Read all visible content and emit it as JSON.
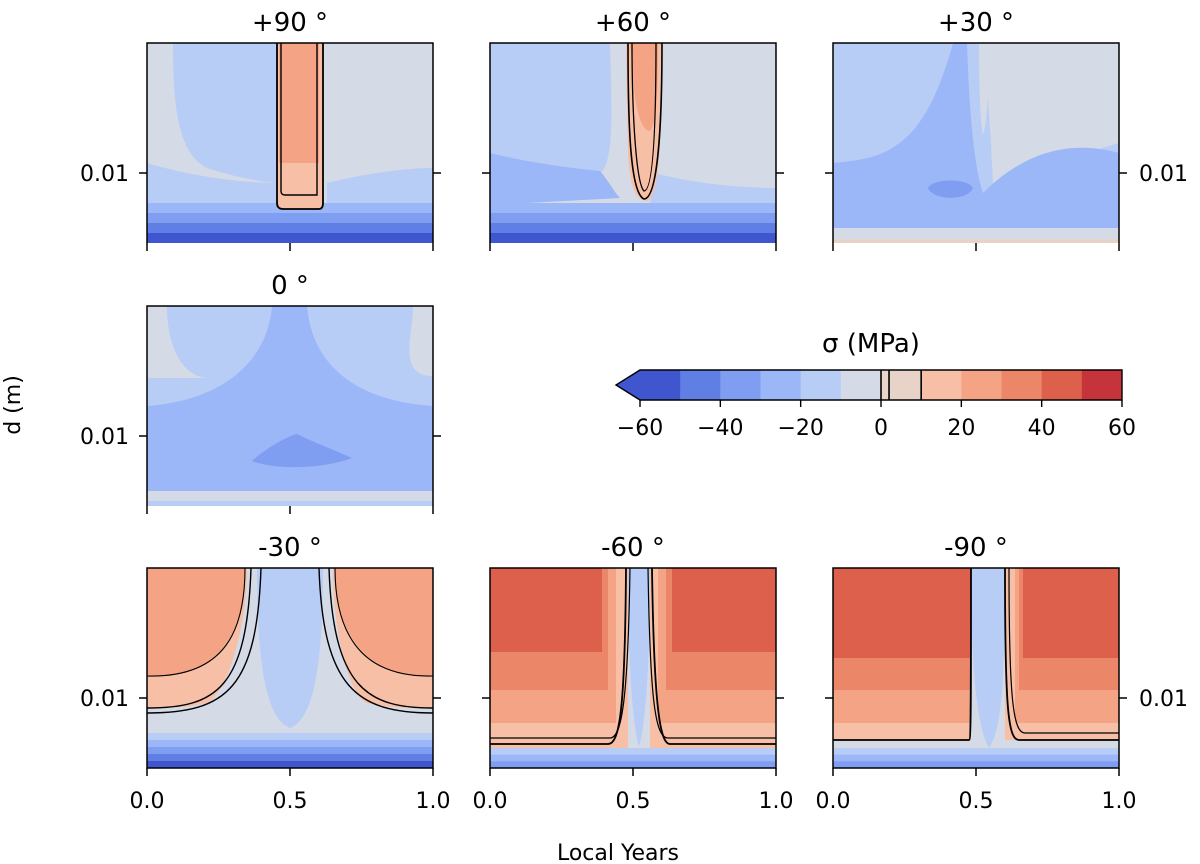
{
  "chart_data": {
    "type": "heatmap",
    "title": "",
    "xlabel": "Local Years",
    "ylabel": "d (m)",
    "xlim": [
      0.0,
      1.0
    ],
    "x_ticks": [
      "0.0",
      "0.5",
      "1.0"
    ],
    "y_tick_label": "0.01",
    "panels": [
      {
        "title": "+90 °",
        "y_tick_side": "left",
        "x_tick_labels": false
      },
      {
        "title": "+60 °",
        "y_tick_side": "none",
        "x_tick_labels": false
      },
      {
        "title": "+30 °",
        "y_tick_side": "right",
        "x_tick_labels": false
      },
      {
        "title": "0 °",
        "y_tick_side": "left",
        "x_tick_labels": false
      },
      {
        "title": "-30 °",
        "y_tick_side": "left",
        "x_tick_labels": true
      },
      {
        "title": "-60 °",
        "y_tick_side": "none",
        "x_tick_labels": true
      },
      {
        "title": "-90 °",
        "y_tick_side": "right",
        "x_tick_labels": true
      }
    ],
    "colorbar": {
      "label": "σ (MPa)",
      "range": [
        -60,
        60
      ],
      "extend": "min",
      "tick_labels": [
        "−60",
        "−40",
        "−20",
        "0",
        "20",
        "40",
        "60"
      ],
      "levels": [
        -60,
        -50,
        -40,
        -30,
        -20,
        -10,
        0,
        2,
        10,
        20,
        30,
        40,
        50,
        60
      ],
      "colors": [
        "#3f56cf",
        "#5f7fe4",
        "#7f9ef2",
        "#9bb7f8",
        "#b7cdf6",
        "#d4dae6",
        "#ead5cc",
        "#e8d3c8",
        "#f6bfa6",
        "#f4a385",
        "#ec8668",
        "#dd604c",
        "#c5343a"
      ],
      "contour_lines_at": [
        0,
        2,
        10
      ]
    }
  }
}
